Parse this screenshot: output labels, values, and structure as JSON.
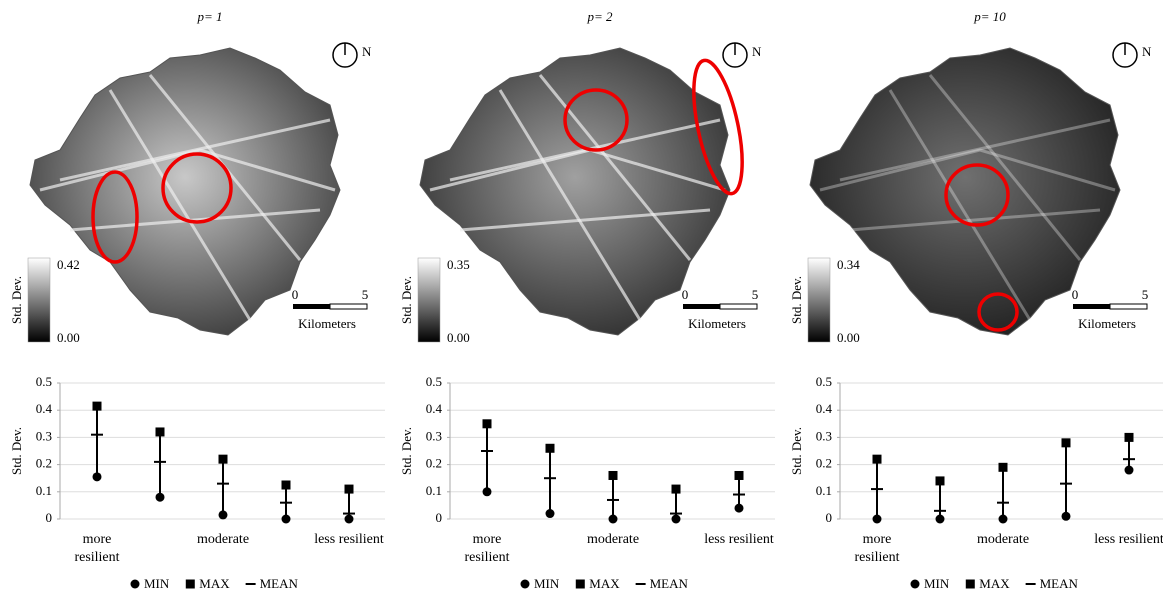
{
  "maps": [
    {
      "title": "p= 1",
      "north": "N",
      "colorbar": {
        "label": "Std. Dev.",
        "max": "0.42",
        "min": "0.00"
      },
      "scale": {
        "ticks": [
          "0",
          "5"
        ],
        "unit": "Kilometers"
      }
    },
    {
      "title": "p= 2",
      "north": "N",
      "colorbar": {
        "label": "Std. Dev.",
        "max": "0.35",
        "min": "0.00"
      },
      "scale": {
        "ticks": [
          "0",
          "5"
        ],
        "unit": "Kilometers"
      }
    },
    {
      "title": "p= 10",
      "north": "N",
      "colorbar": {
        "label": "Std. Dev.",
        "max": "0.34",
        "min": "0.00"
      },
      "scale": {
        "ticks": [
          "0",
          "5"
        ],
        "unit": "Kilometers"
      }
    }
  ],
  "chart_data": [
    {
      "type": "errorbar",
      "ylabel": "Std. Dev.",
      "categories": [
        "more resilient",
        null,
        "moderate",
        null,
        "less resilient"
      ],
      "ylim": [
        0,
        0.5
      ],
      "yticks": [
        0,
        0.1,
        0.2,
        0.3,
        0.4,
        0.5
      ],
      "grid": true,
      "series": [
        {
          "name": "MIN",
          "color": "#000000",
          "values": [
            0.155,
            0.08,
            0.015,
            0,
            0
          ]
        },
        {
          "name": "MAX",
          "color": "#000000",
          "values": [
            0.415,
            0.32,
            0.22,
            0.125,
            0.11
          ]
        },
        {
          "name": "MEAN",
          "color": "#000000",
          "values": [
            0.31,
            0.21,
            0.13,
            0.06,
            0.02
          ]
        }
      ]
    },
    {
      "type": "errorbar",
      "ylabel": "Std. Dev.",
      "categories": [
        "more resilient",
        null,
        "moderate",
        null,
        "less resilient"
      ],
      "ylim": [
        0,
        0.5
      ],
      "yticks": [
        0,
        0.1,
        0.2,
        0.3,
        0.4,
        0.5
      ],
      "grid": true,
      "series": [
        {
          "name": "MIN",
          "color": "#000000",
          "values": [
            0.1,
            0.02,
            0,
            0,
            0.04
          ]
        },
        {
          "name": "MAX",
          "color": "#000000",
          "values": [
            0.35,
            0.26,
            0.16,
            0.11,
            0.16
          ]
        },
        {
          "name": "MEAN",
          "color": "#000000",
          "values": [
            0.25,
            0.15,
            0.07,
            0.02,
            0.09
          ]
        }
      ]
    },
    {
      "type": "errorbar",
      "ylabel": "Std. Dev.",
      "categories": [
        "more resilient",
        null,
        "moderate",
        null,
        "less resilient"
      ],
      "ylim": [
        0,
        0.5
      ],
      "yticks": [
        0,
        0.1,
        0.2,
        0.3,
        0.4,
        0.5
      ],
      "grid": true,
      "series": [
        {
          "name": "MIN",
          "color": "#000000",
          "values": [
            0,
            0,
            0,
            0.01,
            0.18
          ]
        },
        {
          "name": "MAX",
          "color": "#000000",
          "values": [
            0.22,
            0.14,
            0.19,
            0.28,
            0.3
          ]
        },
        {
          "name": "MEAN",
          "color": "#000000",
          "values": [
            0.11,
            0.03,
            0.06,
            0.13,
            0.22
          ]
        }
      ]
    }
  ]
}
